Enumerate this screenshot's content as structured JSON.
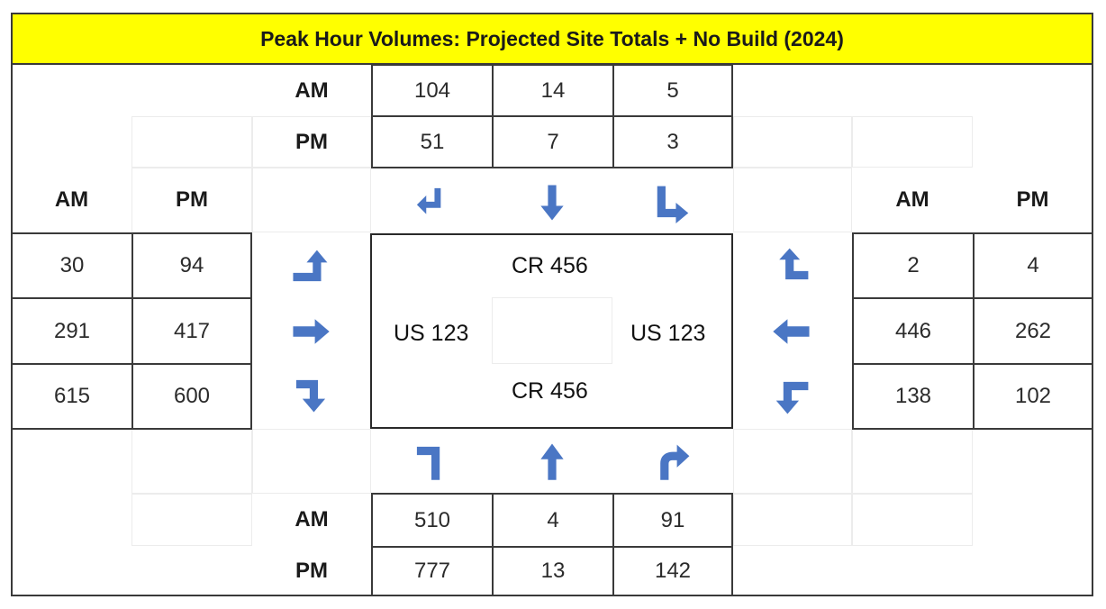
{
  "title": "Peak Hour Volumes: Projected Site Totals + No Build (2024)",
  "colors": {
    "title_bg": "#ffff00",
    "arrow": "#4a76c4",
    "border": "#3a3a3a"
  },
  "labels": {
    "am": "AM",
    "pm": "PM"
  },
  "roads": {
    "north": "CR 456",
    "south": "CR 456",
    "west": "US 123",
    "east": "US 123"
  },
  "north_approach": {
    "am": [
      "104",
      "14",
      "5"
    ],
    "pm": [
      "51",
      "7",
      "3"
    ],
    "icons": [
      "arrow-right-turn-icon",
      "arrow-through-down-icon",
      "arrow-left-turn-icon"
    ]
  },
  "south_approach": {
    "am": [
      "510",
      "4",
      "91"
    ],
    "pm": [
      "777",
      "13",
      "142"
    ],
    "icons": [
      "arrow-left-turn-icon",
      "arrow-through-up-icon",
      "arrow-right-turn-icon"
    ]
  },
  "west_approach": {
    "am": [
      "30",
      "291",
      "615"
    ],
    "pm": [
      "94",
      "417",
      "600"
    ],
    "icons": [
      "arrow-left-turn-icon",
      "arrow-through-right-icon",
      "arrow-right-turn-icon"
    ]
  },
  "east_approach": {
    "am": [
      "2",
      "446",
      "138"
    ],
    "pm": [
      "4",
      "262",
      "102"
    ],
    "icons": [
      "arrow-right-turn-icon",
      "arrow-through-left-icon",
      "arrow-left-turn-icon"
    ]
  }
}
